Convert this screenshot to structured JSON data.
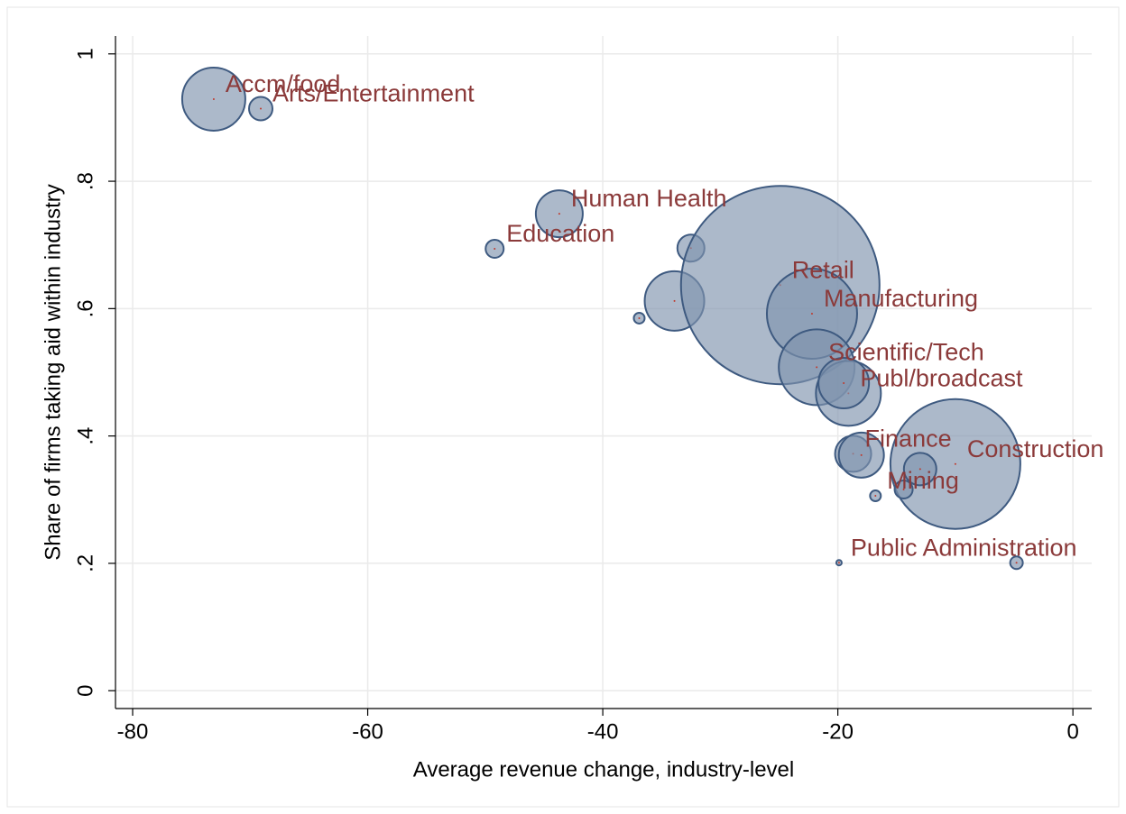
{
  "chart_data": {
    "type": "scatter",
    "x_label": "Average revenue change, industry-level",
    "y_label": "Share of firms taking aid within industry",
    "labels": [
      "Accm/food",
      "Arts/Entertainment",
      "Human Health",
      "Education",
      null,
      null,
      null,
      "Retail",
      "Manufacturing",
      "Scientific/Tech",
      "Publ/broadcast",
      null,
      "Finance",
      null,
      "Construction",
      null,
      null,
      "Mining",
      "Public Administration",
      null
    ],
    "x": [
      -73.1,
      -69.1,
      -43.7,
      -49.2,
      -32.5,
      -36.9,
      -33.9,
      -24.9,
      -22.2,
      -21.8,
      -19.1,
      -19.5,
      -18.7,
      -18.0,
      -10.0,
      -13.0,
      -14.4,
      -16.8,
      -19.9,
      -4.8
    ],
    "y": [
      0.929,
      0.914,
      0.749,
      0.694,
      0.695,
      0.585,
      0.612,
      0.637,
      0.592,
      0.508,
      0.467,
      0.483,
      0.372,
      0.37,
      0.356,
      0.348,
      0.316,
      0.306,
      0.201,
      0.201
    ],
    "sizes": [
      1225,
      169,
      676,
      100,
      225,
      36,
      1089,
      12100,
      2500,
      1764,
      1296,
      784,
      400,
      625,
      5184,
      324,
      100,
      36,
      9,
      49
    ],
    "color": "#7f93ad",
    "edge_color": "#3e5a80",
    "label_color": "#8b3a3a",
    "center_color": "#c0392b",
    "xlim": [
      -81.46,
      1.6
    ],
    "xticks": [
      -80,
      -60,
      -40,
      -20,
      0
    ],
    "ylim": [
      -0.028,
      1.028
    ],
    "yticks": [
      0,
      {
        "value": 0.2,
        "label": ".2"
      },
      {
        "value": 0.4,
        "label": ".4"
      },
      {
        "value": 0.6,
        "label": ".6"
      },
      {
        "value": 0.8,
        "label": ".8"
      },
      1
    ],
    "grid": true
  }
}
